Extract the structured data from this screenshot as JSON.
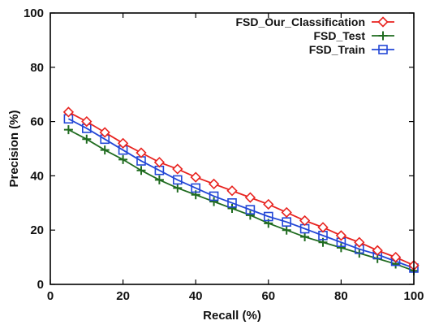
{
  "chart_data": {
    "type": "line",
    "xlabel": "Recall (%)",
    "ylabel": "Precision (%)",
    "xlim": [
      0,
      100
    ],
    "ylim": [
      0,
      100
    ],
    "xticks": [
      "0",
      "20",
      "40",
      "60",
      "80",
      "100"
    ],
    "yticks": [
      "0",
      "20",
      "40",
      "60",
      "80",
      "100"
    ],
    "grid": false,
    "legend_position": "top-right",
    "x": [
      5,
      10,
      15,
      20,
      25,
      30,
      35,
      40,
      45,
      50,
      55,
      60,
      65,
      70,
      75,
      80,
      85,
      90,
      95,
      100
    ],
    "series": [
      {
        "name": "FSD_Our_Classification",
        "color": "#e8231f",
        "marker": "diamond",
        "values": [
          63.5,
          60,
          56,
          52,
          48.5,
          45,
          42.5,
          39.5,
          37,
          34.5,
          32,
          29.5,
          26.5,
          23.5,
          21,
          18,
          15.5,
          12.5,
          10,
          7
        ]
      },
      {
        "name": "FSD_Test",
        "color": "#1f6b1f",
        "marker": "plus",
        "values": [
          57,
          53.5,
          49.5,
          46,
          42,
          38.5,
          35.5,
          33,
          30.5,
          28,
          25.5,
          22.5,
          20,
          17.5,
          15.5,
          13.5,
          11.5,
          9.5,
          7.5,
          5
        ]
      },
      {
        "name": "FSD_Train",
        "color": "#2347d6",
        "marker": "square",
        "values": [
          61,
          57.5,
          53.5,
          49.5,
          45.5,
          42,
          38.5,
          35.5,
          32.5,
          30,
          27.5,
          25,
          23,
          20.5,
          18,
          15.5,
          13,
          11,
          8.5,
          6
        ]
      }
    ]
  }
}
